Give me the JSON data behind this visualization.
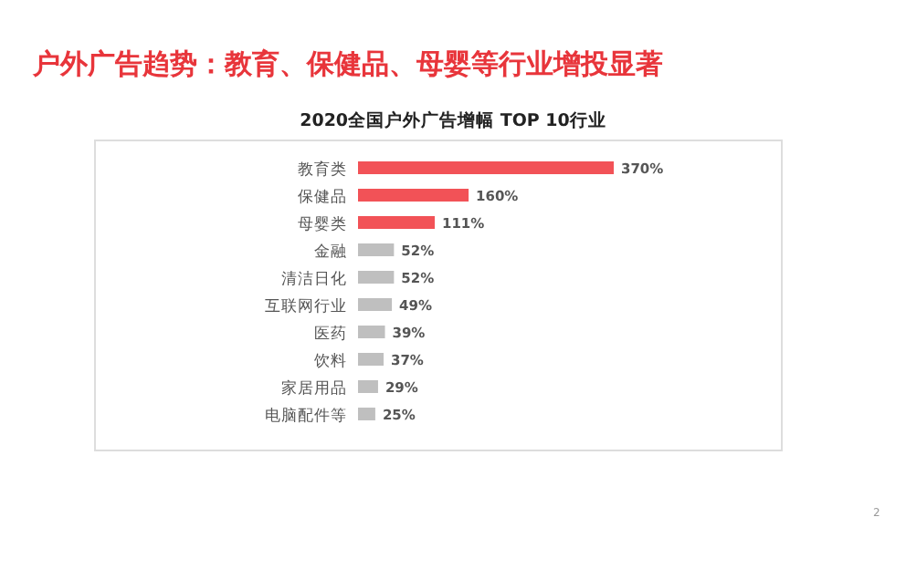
{
  "chart_data": {
    "type": "bar",
    "orientation": "horizontal",
    "title": "户外广告趋势：教育、保健品、母婴等行业增投显著",
    "subtitle": "2020全国户外广告增幅 TOP 10行业",
    "categories": [
      "教育类",
      "保健品",
      "母婴类",
      "金融",
      "清洁日化",
      "互联网行业",
      "医药",
      "饮料",
      "家居用品",
      "电脑配件等"
    ],
    "values": [
      370,
      160,
      111,
      52,
      52,
      49,
      39,
      37,
      29,
      25
    ],
    "value_labels": [
      "370%",
      "160%",
      "111%",
      "52%",
      "52%",
      "49%",
      "39%",
      "37%",
      "29%",
      "25%"
    ],
    "colors": [
      "#f25257",
      "#f25257",
      "#f25257",
      "#bfbfbf",
      "#bfbfbf",
      "#bfbfbf",
      "#bfbfbf",
      "#bfbfbf",
      "#bfbfbf",
      "#bfbfbf"
    ],
    "annotations": [
      "2"
    ]
  }
}
